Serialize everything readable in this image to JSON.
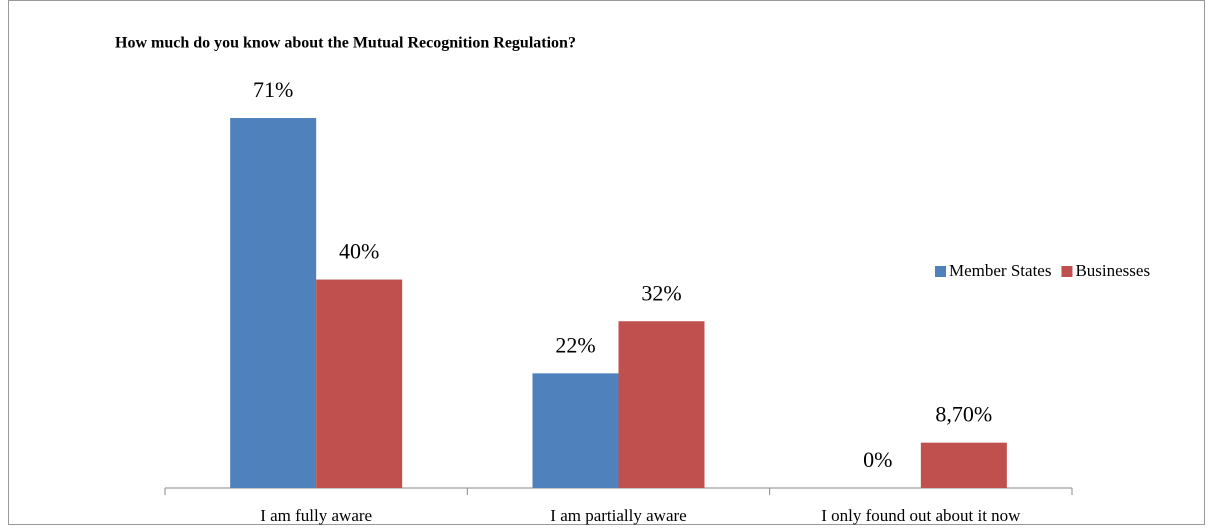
{
  "chart_data": {
    "type": "bar",
    "title": "How much do you know about the Mutual Recognition Regulation?",
    "categories": [
      "I am fully aware",
      "I am partially aware",
      "I only found out about it now"
    ],
    "series": [
      {
        "name": "Member States",
        "color": "#4f81bd",
        "values": [
          71,
          22,
          0
        ],
        "value_labels": [
          "71%",
          "22%",
          "0%"
        ]
      },
      {
        "name": "Businesses",
        "color": "#c0504d",
        "values": [
          40,
          32,
          8.7
        ],
        "value_labels": [
          "40%",
          "32%",
          "8,70%"
        ]
      }
    ],
    "legend": "right"
  }
}
